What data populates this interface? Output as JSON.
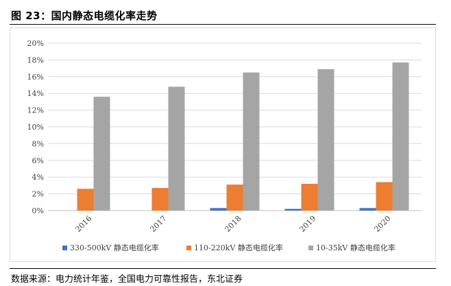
{
  "figure": {
    "title": "图 23：国内静态电缆化率走势",
    "source": "数据来源：电力统计年鉴，全国电力可靠性报告，东北证券"
  },
  "chart_data": {
    "type": "bar",
    "categories": [
      "2016",
      "2017",
      "2018",
      "2019",
      "2020"
    ],
    "series": [
      {
        "name": "330-500kV 静态电缆化率",
        "color": "#4472C4",
        "values": [
          0,
          0,
          0.3,
          0.2,
          0.3
        ]
      },
      {
        "name": "110-220kV 静态电缆化率",
        "color": "#ED7D31",
        "values": [
          2.6,
          2.7,
          3.1,
          3.2,
          3.4
        ]
      },
      {
        "name": "10-35kV 静态电缆化率",
        "color": "#A5A5A5",
        "values": [
          13.6,
          14.8,
          16.5,
          16.9,
          17.7
        ]
      }
    ],
    "ylim": [
      0,
      20
    ],
    "yticks": [
      "0%",
      "2%",
      "4%",
      "6%",
      "8%",
      "10%",
      "12%",
      "14%",
      "16%",
      "18%",
      "20%"
    ],
    "ytick_values": [
      0,
      2,
      4,
      6,
      8,
      10,
      12,
      14,
      16,
      18,
      20
    ],
    "grid": true,
    "legend_position": "bottom"
  }
}
